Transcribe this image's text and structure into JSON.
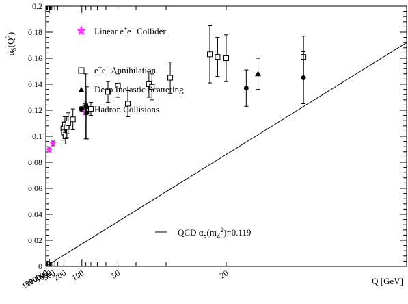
{
  "chart_data": {
    "type": "scatter",
    "title": "",
    "xlabel": "Q [GeV]",
    "ylabel": "α_S(Q²)",
    "xlim": [
      1000000000,
      10
    ],
    "ylim": [
      0,
      0.2
    ],
    "x_scale": "reciprocal",
    "x_tick_labels": [
      "1000000",
      "100000",
      "10000",
      "1000",
      "500",
      "200",
      "100",
      "50",
      "20"
    ],
    "y_tick_labels": [
      "0",
      "0.02",
      "0.04",
      "0.06",
      "0.08",
      "0.1",
      "0.12",
      "0.14",
      "0.16",
      "0.18",
      "0.2"
    ],
    "grid": false,
    "legend_position": "top-left",
    "colors": {
      "linear_collider": "#ff33ff",
      "data": "#000000",
      "fit": "#000000"
    },
    "series": [
      {
        "name": "Linear e+e− Collider",
        "marker": "star",
        "points": [
          {
            "x": 1000,
            "y": 0.0895,
            "err": 0.0015
          },
          {
            "x": 500,
            "y": 0.0945,
            "err": 0.0018
          },
          {
            "x": 91.2,
            "y": 0.1185,
            "err": 0.002
          }
        ]
      },
      {
        "name": "e+e− Annihilation",
        "marker": "open-square",
        "points": [
          {
            "x": 206,
            "y": 0.106,
            "err": 0.005
          },
          {
            "x": 200,
            "y": 0.103,
            "err": 0.006
          },
          {
            "x": 189,
            "y": 0.109,
            "err": 0.006
          },
          {
            "x": 183,
            "y": 0.1,
            "err": 0.006
          },
          {
            "x": 172,
            "y": 0.107,
            "err": 0.008
          },
          {
            "x": 161,
            "y": 0.11,
            "err": 0.008
          },
          {
            "x": 133,
            "y": 0.113,
            "err": 0.008
          },
          {
            "x": 91.2,
            "y": 0.123,
            "err": 0.004
          },
          {
            "x": 80,
            "y": 0.121,
            "err": 0.005
          },
          {
            "x": 58,
            "y": 0.134,
            "err": 0.008
          },
          {
            "x": 50,
            "y": 0.139,
            "err": 0.009
          },
          {
            "x": 44,
            "y": 0.125,
            "err": 0.01
          },
          {
            "x": 35,
            "y": 0.14,
            "err": 0.01
          },
          {
            "x": 34,
            "y": 0.138,
            "err": 0.01
          },
          {
            "x": 29,
            "y": 0.145,
            "err": 0.012
          },
          {
            "x": 22,
            "y": 0.163,
            "err": 0.022
          },
          {
            "x": 21,
            "y": 0.161,
            "err": 0.015
          },
          {
            "x": 20,
            "y": 0.16,
            "err": 0.018
          },
          {
            "x": 14,
            "y": 0.161,
            "err": 0.016
          }
        ]
      },
      {
        "name": "Deep Inelastic Scattering",
        "marker": "filled-triangle",
        "points": [
          {
            "x": 17,
            "y": 0.148,
            "err": 0.012
          }
        ]
      },
      {
        "name": "Hadron Collisions",
        "marker": "filled-circle",
        "points": [
          {
            "x": 90,
            "y": 0.123,
            "err": 0.025
          },
          {
            "x": 88,
            "y": 0.118,
            "err": 0.02
          },
          {
            "x": 18,
            "y": 0.137,
            "err": 0.014
          },
          {
            "x": 14,
            "y": 0.145,
            "err": 0.02
          }
        ]
      },
      {
        "name": "QCD α_S(m_Z²)=0.119",
        "marker": "line",
        "line": {
          "x0": 1000000000,
          "y0": 0.0,
          "x1": 10,
          "y1": 0.172
        }
      }
    ],
    "legend": {
      "linear_collider": "Linear e⁺e⁻ Collider",
      "annihilation": "e⁺e⁻ Annihilation",
      "dis": "Deep Inelastic Scattering",
      "hadron": "Hadron Collisions",
      "qcd": "QCD α_S(m_Z²)=0.119"
    }
  }
}
